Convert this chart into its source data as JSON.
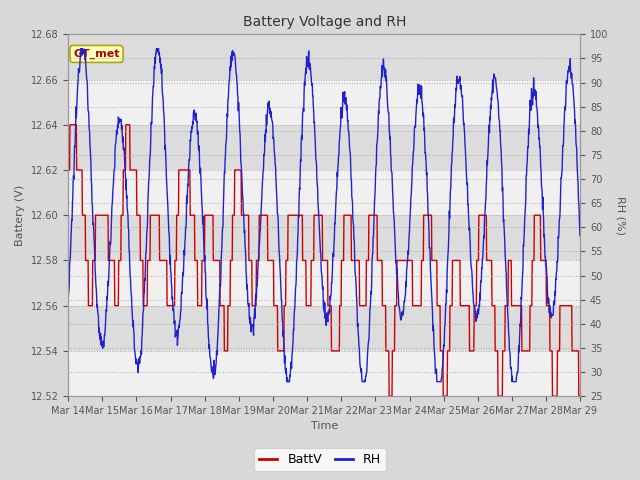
{
  "title": "Battery Voltage and RH",
  "xlabel": "Time",
  "ylabel_left": "Battery (V)",
  "ylabel_right": "RH (%)",
  "annotation_text": "GT_met",
  "ylim_left": [
    12.52,
    12.68
  ],
  "ylim_right": [
    25,
    100
  ],
  "yticks_left": [
    12.52,
    12.54,
    12.56,
    12.58,
    12.6,
    12.62,
    12.64,
    12.66,
    12.68
  ],
  "yticks_right": [
    25,
    30,
    35,
    40,
    45,
    50,
    55,
    60,
    65,
    70,
    75,
    80,
    85,
    90,
    95,
    100
  ],
  "xtick_labels": [
    "Mar 14",
    "Mar 15",
    "Mar 16",
    "Mar 17",
    "Mar 18",
    "Mar 19",
    "Mar 20",
    "Mar 21",
    "Mar 22",
    "Mar 23",
    "Mar 24",
    "Mar 25",
    "Mar 26",
    "Mar 27",
    "Mar 28",
    "Mar 29"
  ],
  "battv_color": "#cc0000",
  "rh_color": "#2222cc",
  "legend_battv": "BattV",
  "legend_rh": "RH",
  "bg_color": "#d8d8d8",
  "plot_bg_color": "#e8e8e8",
  "band_color_light": "#f0f0f0",
  "band_color_dark": "#dcdcdc",
  "annotation_bg": "#ffffc0",
  "annotation_border": "#aaaa00",
  "line_width": 1.0,
  "figsize": [
    6.4,
    4.8
  ],
  "dpi": 100
}
